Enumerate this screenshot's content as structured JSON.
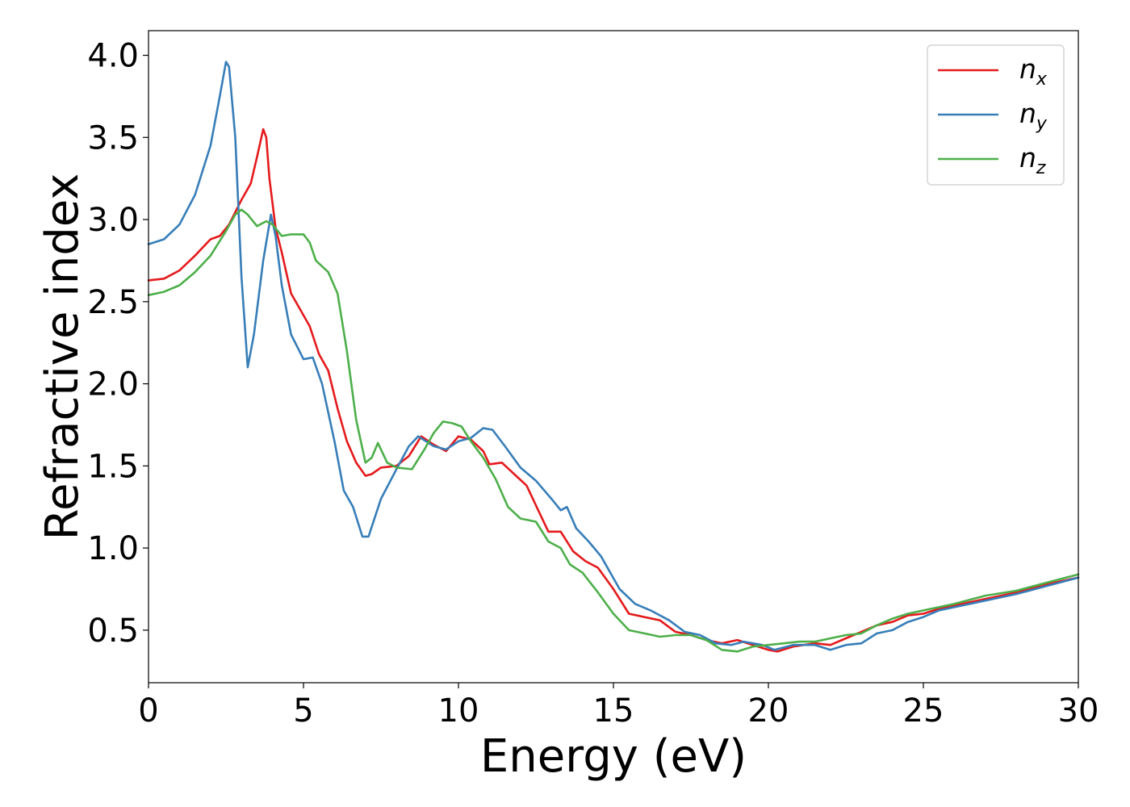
{
  "chart_data": {
    "type": "line",
    "title": "",
    "xlabel": "Energy (eV)",
    "ylabel": "Refractive index",
    "xlim": [
      0,
      30
    ],
    "ylim": [
      0.18,
      4.15
    ],
    "xticks": [
      0,
      5,
      10,
      15,
      20,
      25,
      30
    ],
    "yticks": [
      0.5,
      1.0,
      1.5,
      2.0,
      2.5,
      3.0,
      3.5,
      4.0
    ],
    "grid": false,
    "legend_position": "top-right",
    "series": [
      {
        "name_base": "n",
        "name_sub": "x",
        "color": "#e41a1c",
        "points": [
          [
            0,
            2.63
          ],
          [
            0.5,
            2.64
          ],
          [
            1,
            2.69
          ],
          [
            1.5,
            2.78
          ],
          [
            2,
            2.88
          ],
          [
            2.3,
            2.9
          ],
          [
            2.6,
            2.97
          ],
          [
            3,
            3.12
          ],
          [
            3.3,
            3.22
          ],
          [
            3.5,
            3.38
          ],
          [
            3.7,
            3.55
          ],
          [
            3.8,
            3.5
          ],
          [
            3.9,
            3.25
          ],
          [
            4.1,
            2.95
          ],
          [
            4.3,
            2.8
          ],
          [
            4.6,
            2.55
          ],
          [
            4.9,
            2.45
          ],
          [
            5.2,
            2.35
          ],
          [
            5.5,
            2.18
          ],
          [
            5.8,
            2.08
          ],
          [
            6.1,
            1.85
          ],
          [
            6.4,
            1.65
          ],
          [
            6.7,
            1.52
          ],
          [
            7,
            1.44
          ],
          [
            7.2,
            1.45
          ],
          [
            7.5,
            1.49
          ],
          [
            8,
            1.5
          ],
          [
            8.4,
            1.56
          ],
          [
            8.8,
            1.68
          ],
          [
            9.2,
            1.63
          ],
          [
            9.6,
            1.59
          ],
          [
            10,
            1.68
          ],
          [
            10.4,
            1.66
          ],
          [
            10.8,
            1.59
          ],
          [
            11,
            1.51
          ],
          [
            11.4,
            1.52
          ],
          [
            11.8,
            1.45
          ],
          [
            12.2,
            1.38
          ],
          [
            12.6,
            1.22
          ],
          [
            12.9,
            1.1
          ],
          [
            13.3,
            1.1
          ],
          [
            13.7,
            0.98
          ],
          [
            14.1,
            0.92
          ],
          [
            14.5,
            0.88
          ],
          [
            15,
            0.75
          ],
          [
            15.5,
            0.6
          ],
          [
            16,
            0.58
          ],
          [
            16.5,
            0.56
          ],
          [
            17,
            0.49
          ],
          [
            17.5,
            0.47
          ],
          [
            18,
            0.44
          ],
          [
            18.5,
            0.42
          ],
          [
            19,
            0.44
          ],
          [
            19.5,
            0.41
          ],
          [
            20,
            0.38
          ],
          [
            20.3,
            0.37
          ],
          [
            20.8,
            0.4
          ],
          [
            21.5,
            0.42
          ],
          [
            22,
            0.41
          ],
          [
            22.5,
            0.45
          ],
          [
            23,
            0.49
          ],
          [
            23.5,
            0.53
          ],
          [
            24,
            0.55
          ],
          [
            24.5,
            0.59
          ],
          [
            25,
            0.6
          ],
          [
            25.5,
            0.63
          ],
          [
            26,
            0.65
          ],
          [
            27,
            0.69
          ],
          [
            28,
            0.73
          ],
          [
            29,
            0.78
          ],
          [
            30,
            0.82
          ]
        ]
      },
      {
        "name_base": "n",
        "name_sub": "y",
        "color": "#377eb8",
        "points": [
          [
            0,
            2.85
          ],
          [
            0.5,
            2.88
          ],
          [
            1,
            2.97
          ],
          [
            1.5,
            3.15
          ],
          [
            2,
            3.45
          ],
          [
            2.3,
            3.75
          ],
          [
            2.5,
            3.96
          ],
          [
            2.6,
            3.93
          ],
          [
            2.8,
            3.5
          ],
          [
            3,
            2.65
          ],
          [
            3.2,
            2.1
          ],
          [
            3.4,
            2.3
          ],
          [
            3.7,
            2.75
          ],
          [
            3.95,
            3.03
          ],
          [
            4.1,
            2.9
          ],
          [
            4.3,
            2.6
          ],
          [
            4.6,
            2.3
          ],
          [
            5,
            2.15
          ],
          [
            5.3,
            2.16
          ],
          [
            5.6,
            2.0
          ],
          [
            6,
            1.65
          ],
          [
            6.3,
            1.35
          ],
          [
            6.6,
            1.25
          ],
          [
            6.9,
            1.07
          ],
          [
            7.1,
            1.07
          ],
          [
            7.5,
            1.3
          ],
          [
            8,
            1.48
          ],
          [
            8.4,
            1.62
          ],
          [
            8.7,
            1.68
          ],
          [
            9.2,
            1.62
          ],
          [
            9.6,
            1.6
          ],
          [
            10,
            1.65
          ],
          [
            10.4,
            1.67
          ],
          [
            10.8,
            1.73
          ],
          [
            11.1,
            1.72
          ],
          [
            11.5,
            1.62
          ],
          [
            12,
            1.49
          ],
          [
            12.5,
            1.41
          ],
          [
            13,
            1.3
          ],
          [
            13.3,
            1.23
          ],
          [
            13.5,
            1.25
          ],
          [
            13.8,
            1.12
          ],
          [
            14.2,
            1.04
          ],
          [
            14.6,
            0.95
          ],
          [
            15.2,
            0.75
          ],
          [
            15.7,
            0.66
          ],
          [
            16.2,
            0.62
          ],
          [
            16.8,
            0.56
          ],
          [
            17.3,
            0.49
          ],
          [
            17.8,
            0.47
          ],
          [
            18.3,
            0.42
          ],
          [
            18.8,
            0.41
          ],
          [
            19.2,
            0.43
          ],
          [
            19.8,
            0.41
          ],
          [
            20.2,
            0.38
          ],
          [
            20.8,
            0.41
          ],
          [
            21.5,
            0.41
          ],
          [
            22,
            0.38
          ],
          [
            22.5,
            0.41
          ],
          [
            23,
            0.42
          ],
          [
            23.5,
            0.48
          ],
          [
            24,
            0.5
          ],
          [
            24.5,
            0.55
          ],
          [
            25,
            0.58
          ],
          [
            25.5,
            0.62
          ],
          [
            26,
            0.64
          ],
          [
            27,
            0.68
          ],
          [
            28,
            0.72
          ],
          [
            29,
            0.77
          ],
          [
            30,
            0.82
          ]
        ]
      },
      {
        "name_base": "n",
        "name_sub": "z",
        "color": "#4daf4a",
        "points": [
          [
            0,
            2.54
          ],
          [
            0.5,
            2.56
          ],
          [
            1,
            2.6
          ],
          [
            1.5,
            2.68
          ],
          [
            2,
            2.78
          ],
          [
            2.5,
            2.93
          ],
          [
            2.8,
            3.03
          ],
          [
            3,
            3.06
          ],
          [
            3.2,
            3.03
          ],
          [
            3.5,
            2.96
          ],
          [
            3.8,
            2.99
          ],
          [
            4,
            2.97
          ],
          [
            4.3,
            2.9
          ],
          [
            4.6,
            2.91
          ],
          [
            5,
            2.91
          ],
          [
            5.2,
            2.86
          ],
          [
            5.4,
            2.75
          ],
          [
            5.8,
            2.68
          ],
          [
            6.1,
            2.55
          ],
          [
            6.4,
            2.2
          ],
          [
            6.7,
            1.78
          ],
          [
            7,
            1.52
          ],
          [
            7.2,
            1.55
          ],
          [
            7.4,
            1.64
          ],
          [
            7.7,
            1.52
          ],
          [
            8,
            1.49
          ],
          [
            8.5,
            1.48
          ],
          [
            8.9,
            1.6
          ],
          [
            9.2,
            1.7
          ],
          [
            9.5,
            1.77
          ],
          [
            9.8,
            1.76
          ],
          [
            10.1,
            1.74
          ],
          [
            10.4,
            1.65
          ],
          [
            10.8,
            1.55
          ],
          [
            11.2,
            1.42
          ],
          [
            11.6,
            1.25
          ],
          [
            12,
            1.18
          ],
          [
            12.5,
            1.16
          ],
          [
            12.9,
            1.04
          ],
          [
            13.3,
            1.0
          ],
          [
            13.6,
            0.9
          ],
          [
            14,
            0.85
          ],
          [
            14.5,
            0.73
          ],
          [
            15,
            0.6
          ],
          [
            15.5,
            0.5
          ],
          [
            16,
            0.48
          ],
          [
            16.5,
            0.46
          ],
          [
            17,
            0.47
          ],
          [
            17.5,
            0.47
          ],
          [
            18,
            0.44
          ],
          [
            18.5,
            0.38
          ],
          [
            19,
            0.37
          ],
          [
            19.5,
            0.4
          ],
          [
            20,
            0.41
          ],
          [
            20.5,
            0.42
          ],
          [
            21,
            0.43
          ],
          [
            21.5,
            0.43
          ],
          [
            22,
            0.45
          ],
          [
            22.5,
            0.47
          ],
          [
            23,
            0.48
          ],
          [
            23.5,
            0.53
          ],
          [
            24,
            0.57
          ],
          [
            24.5,
            0.6
          ],
          [
            25,
            0.62
          ],
          [
            25.5,
            0.64
          ],
          [
            26,
            0.66
          ],
          [
            27,
            0.71
          ],
          [
            28,
            0.74
          ],
          [
            29,
            0.79
          ],
          [
            30,
            0.84
          ]
        ]
      }
    ]
  }
}
